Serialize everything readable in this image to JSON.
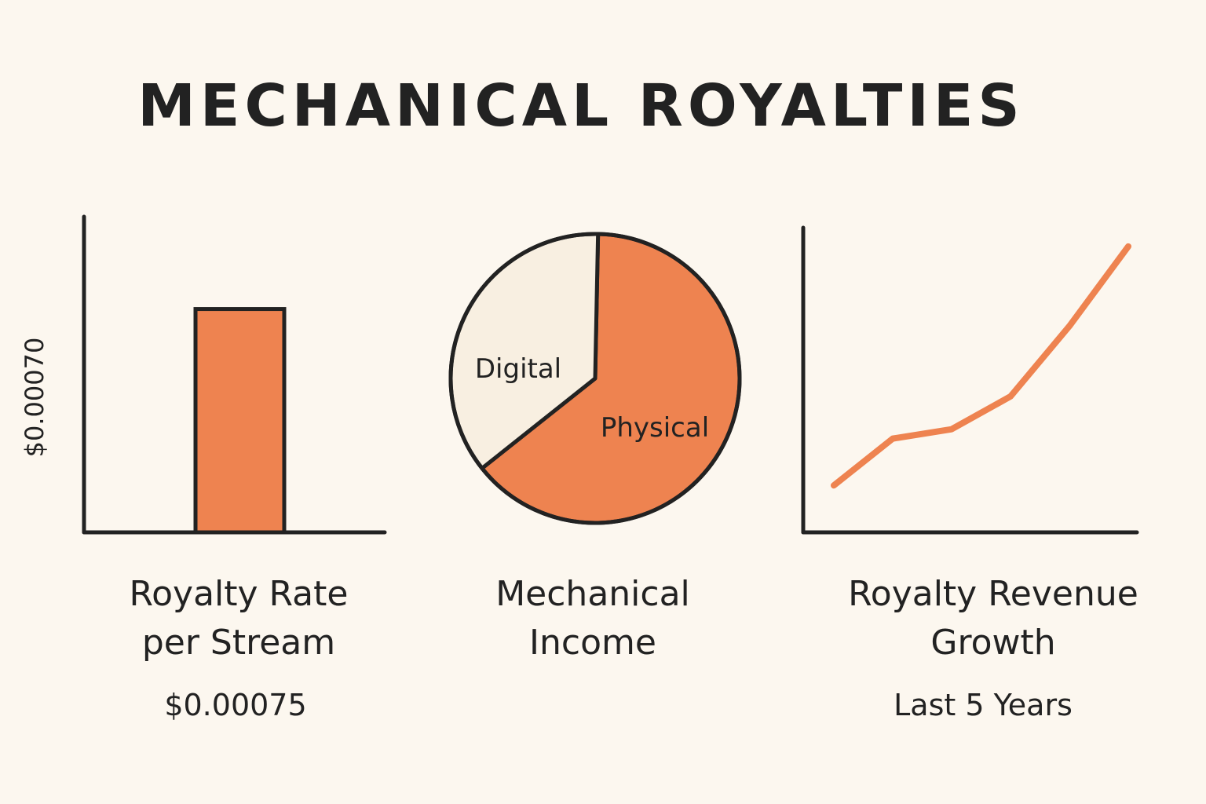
{
  "title": "MECHANICAL ROYALTIES",
  "colors": {
    "accent": "#ee8350",
    "ink": "#222222",
    "cream": "#f8efe1",
    "background": "#fcf7ef"
  },
  "chart_data": [
    {
      "type": "bar",
      "categories": [
        ""
      ],
      "values": [
        0.00075
      ],
      "ylabel": "$0.00070",
      "caption_line1": "Royalty Rate",
      "caption_line2": "per Stream",
      "value_label": "$0.00075"
    },
    {
      "type": "pie",
      "slices": [
        {
          "label": "Physical",
          "value": 64,
          "color": "#ee8350"
        },
        {
          "label": "Digital",
          "value": 36,
          "color": "#f8efe1"
        }
      ],
      "caption_line1": "Mechanical",
      "caption_line2": "Income"
    },
    {
      "type": "line",
      "x": [
        1,
        2,
        3,
        4,
        5,
        6
      ],
      "y": [
        10,
        20,
        22,
        29,
        44,
        61
      ],
      "ylim": [
        0,
        65
      ],
      "caption_line1": "Royalty Revenue",
      "caption_line2": "Growth",
      "subtitle": "Last 5 Years"
    }
  ]
}
